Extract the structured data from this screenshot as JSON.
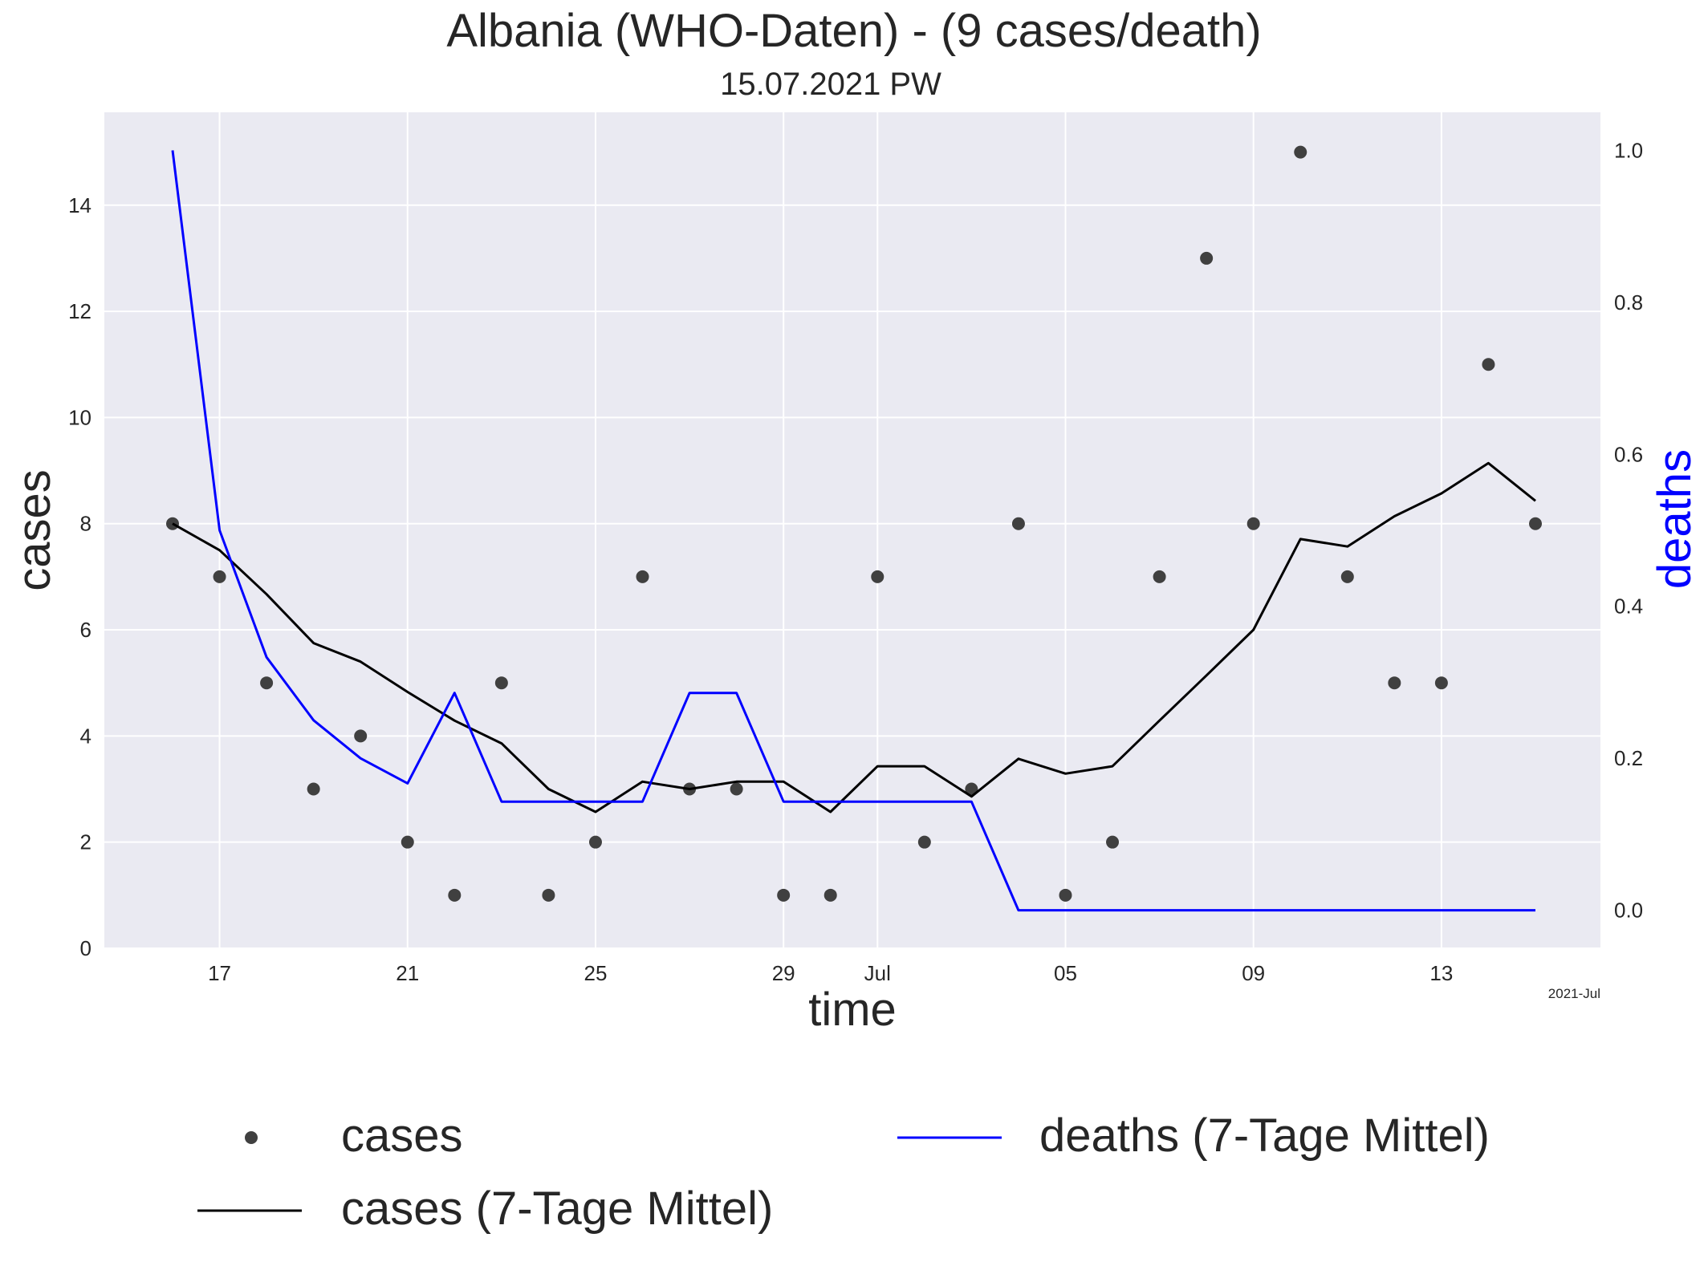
{
  "title": "Albania (WHO-Daten) - (9 cases/death)",
  "subtitle": "15.07.2021 PW",
  "chart_data": {
    "type": "line",
    "title": "Albania (WHO-Daten) - (9 cases/death)",
    "subtitle": "15.07.2021 PW",
    "xlabel": "time",
    "ylabel": "cases",
    "y2label": "deaths",
    "x_offset_label": "2021-Jul",
    "x_dates": [
      "2021-06-16",
      "2021-06-17",
      "2021-06-18",
      "2021-06-19",
      "2021-06-20",
      "2021-06-21",
      "2021-06-22",
      "2021-06-23",
      "2021-06-24",
      "2021-06-25",
      "2021-06-26",
      "2021-06-27",
      "2021-06-28",
      "2021-06-29",
      "2021-06-30",
      "2021-07-01",
      "2021-07-02",
      "2021-07-03",
      "2021-07-04",
      "2021-07-05",
      "2021-07-06",
      "2021-07-07",
      "2021-07-08",
      "2021-07-09",
      "2021-07-10",
      "2021-07-11",
      "2021-07-12",
      "2021-07-13",
      "2021-07-14",
      "2021-07-15"
    ],
    "x_ticks": [
      {
        "date": "2021-06-17",
        "label": "17"
      },
      {
        "date": "2021-06-21",
        "label": "21"
      },
      {
        "date": "2021-06-25",
        "label": "25"
      },
      {
        "date": "2021-06-29",
        "label": "29"
      },
      {
        "date": "2021-07-01",
        "label": "Jul"
      },
      {
        "date": "2021-07-05",
        "label": "05"
      },
      {
        "date": "2021-07-09",
        "label": "09"
      },
      {
        "date": "2021-07-13",
        "label": "13"
      }
    ],
    "ylim": [
      0,
      15.75
    ],
    "yticks": [
      0,
      2,
      4,
      6,
      8,
      10,
      12,
      14
    ],
    "y2lim": [
      -0.05,
      1.05
    ],
    "y2ticks": [
      "0.0",
      "0.2",
      "0.4",
      "0.6",
      "0.8",
      "1.0"
    ],
    "grid": true,
    "legend_position": "bottom",
    "series": [
      {
        "name": "cases",
        "type": "scatter",
        "axis": "left",
        "color": "#404040",
        "values": [
          8,
          7,
          5,
          3,
          4,
          2,
          1,
          5,
          1,
          2,
          7,
          3,
          3,
          1,
          1,
          7,
          2,
          3,
          8,
          1,
          2,
          7,
          13,
          8,
          15,
          7,
          5,
          5,
          11,
          8
        ]
      },
      {
        "name": "cases (7-Tage Mittel)",
        "type": "line",
        "axis": "left",
        "color": "#000000",
        "values": [
          8,
          7.5,
          6.67,
          5.75,
          5.4,
          4.83,
          4.29,
          3.86,
          3.0,
          2.57,
          3.14,
          3.0,
          3.14,
          3.14,
          2.57,
          3.43,
          3.43,
          2.86,
          3.57,
          3.29,
          3.43,
          4.29,
          5.14,
          6.0,
          7.71,
          7.57,
          8.14,
          8.57,
          9.14,
          8.43
        ]
      },
      {
        "name": "deaths (7-Tage Mittel)",
        "type": "line",
        "axis": "right",
        "color": "#0000ff",
        "values": [
          1.0,
          0.5,
          0.333,
          0.25,
          0.2,
          0.167,
          0.286,
          0.143,
          0.143,
          0.143,
          0.143,
          0.286,
          0.286,
          0.143,
          0.143,
          0.143,
          0.143,
          0.143,
          0.0,
          0.0,
          0.0,
          0.0,
          0.0,
          0.0,
          0.0,
          0.0,
          0.0,
          0.0,
          0.0,
          0.0
        ]
      }
    ]
  }
}
